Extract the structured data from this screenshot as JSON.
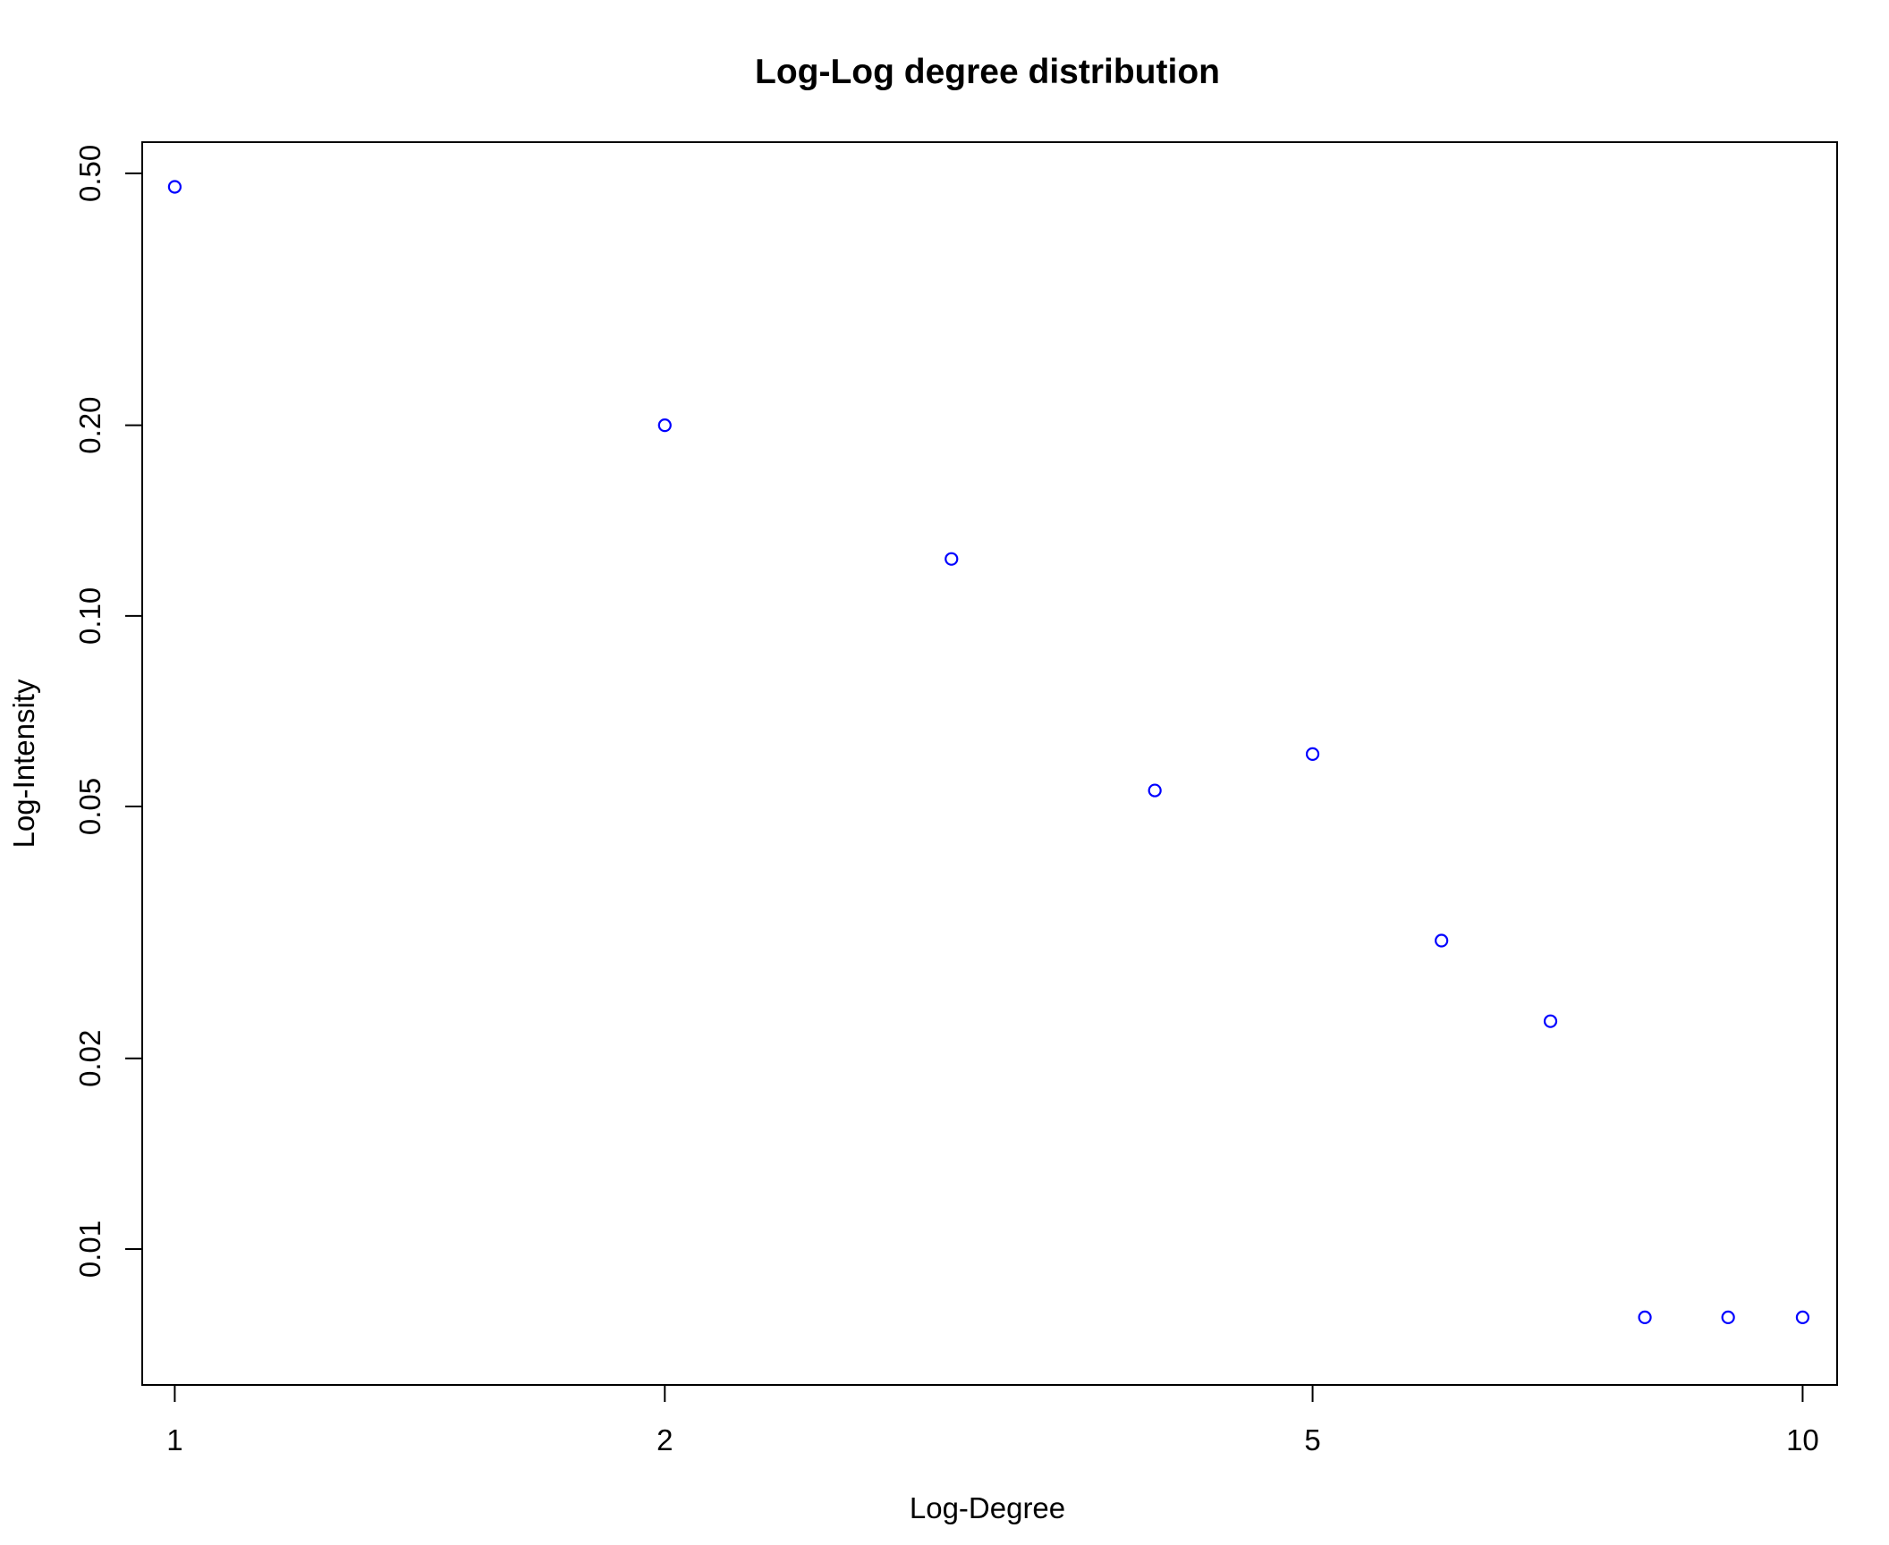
{
  "chart_data": {
    "type": "scatter",
    "title": "Log-Log degree distribution",
    "xlabel": "Log-Degree",
    "ylabel": "Log-Intensity",
    "x_scale": "log",
    "y_scale": "log",
    "xlim": [
      0.955,
      10.5
    ],
    "ylim": [
      0.0061,
      0.56
    ],
    "x_ticks": [
      {
        "value": 1,
        "label": "1"
      },
      {
        "value": 2,
        "label": "2"
      },
      {
        "value": 5,
        "label": "5"
      },
      {
        "value": 10,
        "label": "10"
      }
    ],
    "y_ticks": [
      {
        "value": 0.01,
        "label": "0.01"
      },
      {
        "value": 0.02,
        "label": "0.02"
      },
      {
        "value": 0.05,
        "label": "0.05"
      },
      {
        "value": 0.1,
        "label": "0.10"
      },
      {
        "value": 0.2,
        "label": "0.20"
      },
      {
        "value": 0.5,
        "label": "0.50"
      }
    ],
    "grid": false,
    "legend": "none",
    "marker": "open-circle",
    "point_color": "#0000ff",
    "series": [
      {
        "x": [
          1,
          2,
          3,
          4,
          5,
          6,
          7,
          8,
          9,
          10
        ],
        "y": [
          0.476,
          0.2,
          0.123,
          0.053,
          0.0605,
          0.0307,
          0.0229,
          0.0078,
          0.0078,
          0.0078
        ]
      }
    ]
  }
}
